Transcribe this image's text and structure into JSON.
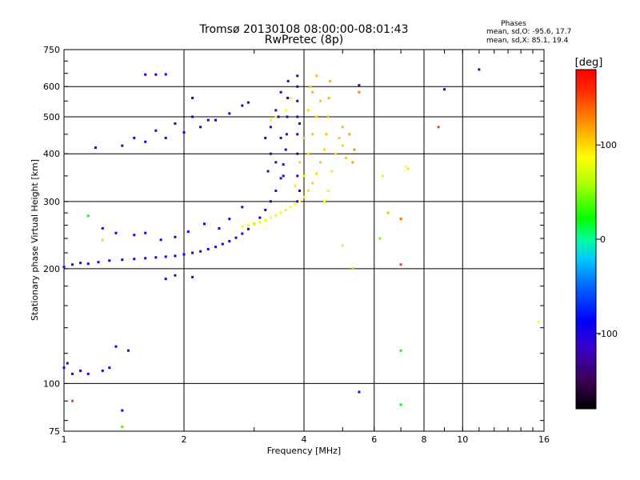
{
  "chart_data": {
    "type": "scatter",
    "title": "Tromsø 20130108 08:00:00-08:01:43",
    "subtitle": "RwPretec (8p)",
    "xlabel": "Frequency [MHz]",
    "ylabel": "Stationary phase Virtual Height [km]",
    "x_scale": "log",
    "y_scale": "log",
    "xlim": [
      1,
      16
    ],
    "ylim": [
      75,
      750
    ],
    "grid": true,
    "x_ticks": [
      1,
      2,
      4,
      6,
      8,
      10,
      16
    ],
    "y_ticks": [
      75,
      100,
      200,
      300,
      400,
      500,
      600,
      750
    ],
    "x_tick_labels": [
      "1",
      "2",
      "4",
      "6",
      "8",
      "10",
      "16"
    ],
    "y_tick_labels": [
      "75",
      "100",
      "200",
      "300",
      "400",
      "500",
      "600",
      "750"
    ],
    "stats": {
      "heading": "Phases",
      "line_o": "mean, sd,O: -95.6, 17.7",
      "line_x": "mean, sd,X:  85.1, 19.4"
    },
    "colorbar": {
      "label": "[deg]",
      "min": -180,
      "max": 180,
      "ticks": [
        100,
        0,
        -100
      ],
      "tick_labels": [
        "100",
        "0",
        "-100"
      ]
    },
    "series": [
      {
        "mode": "O",
        "phase_mean": -95.6,
        "points": [
          [
            1.0,
            202,
            -110
          ],
          [
            1.05,
            205,
            -105
          ],
          [
            1.1,
            207,
            -100
          ],
          [
            1.15,
            206,
            -95
          ],
          [
            1.22,
            208,
            -100
          ],
          [
            1.3,
            210,
            -95
          ],
          [
            1.4,
            211,
            -100
          ],
          [
            1.5,
            212,
            -95
          ],
          [
            1.6,
            213,
            -100
          ],
          [
            1.7,
            214,
            -95
          ],
          [
            1.8,
            215,
            -100
          ],
          [
            1.9,
            216,
            -95
          ],
          [
            2.0,
            218,
            -100
          ],
          [
            2.1,
            220,
            -95
          ],
          [
            2.2,
            222,
            -100
          ],
          [
            2.3,
            225,
            -95
          ],
          [
            2.4,
            228,
            -100
          ],
          [
            2.5,
            232,
            -95
          ],
          [
            2.6,
            236,
            -100
          ],
          [
            2.7,
            241,
            -95
          ],
          [
            2.8,
            247,
            -100
          ],
          [
            2.9,
            254,
            -95
          ],
          [
            3.0,
            262,
            -100
          ],
          [
            3.1,
            272,
            -95
          ],
          [
            3.2,
            285,
            -100
          ],
          [
            3.3,
            300,
            -105
          ],
          [
            3.4,
            320,
            -110
          ],
          [
            3.5,
            345,
            -115
          ],
          [
            3.55,
            375,
            -115
          ],
          [
            3.6,
            410,
            -120
          ],
          [
            3.62,
            450,
            -120
          ],
          [
            3.63,
            500,
            -125
          ],
          [
            3.64,
            560,
            -130
          ],
          [
            3.65,
            620,
            -130
          ],
          [
            1.25,
            255,
            -100
          ],
          [
            1.35,
            248,
            -95
          ],
          [
            1.5,
            245,
            -100
          ],
          [
            1.6,
            248,
            -95
          ],
          [
            1.75,
            238,
            -100
          ],
          [
            1.9,
            242,
            -95
          ],
          [
            2.05,
            250,
            -100
          ],
          [
            2.25,
            262,
            -95
          ],
          [
            2.45,
            255,
            -100
          ],
          [
            2.6,
            270,
            -95
          ],
          [
            2.8,
            290,
            -105
          ],
          [
            1.1,
            108,
            -100
          ],
          [
            1.15,
            106,
            -95
          ],
          [
            1.25,
            108,
            -100
          ],
          [
            1.3,
            110,
            -95
          ],
          [
            1.0,
            110,
            -110
          ],
          [
            1.02,
            113,
            -105
          ],
          [
            1.05,
            106,
            -100
          ],
          [
            1.35,
            125,
            -105
          ],
          [
            1.6,
            645,
            -100
          ],
          [
            1.7,
            645,
            -95
          ],
          [
            1.8,
            646,
            -100
          ],
          [
            1.2,
            415,
            -100
          ],
          [
            1.4,
            420,
            -100
          ],
          [
            1.6,
            430,
            -95
          ],
          [
            1.8,
            440,
            -100
          ],
          [
            2.0,
            455,
            -95
          ],
          [
            2.2,
            470,
            -100
          ],
          [
            2.4,
            490,
            -95
          ],
          [
            2.6,
            510,
            -100
          ],
          [
            2.8,
            535,
            -95
          ],
          [
            2.9,
            545,
            -100
          ],
          [
            1.5,
            440,
            -95
          ],
          [
            1.7,
            460,
            -100
          ],
          [
            1.9,
            480,
            -95
          ],
          [
            2.1,
            500,
            -100
          ],
          [
            2.3,
            490,
            -95
          ],
          [
            3.2,
            440,
            -120
          ],
          [
            3.3,
            470,
            -125
          ],
          [
            3.4,
            520,
            -130
          ],
          [
            3.5,
            580,
            -130
          ],
          [
            3.3,
            400,
            -120
          ],
          [
            3.25,
            360,
            -115
          ],
          [
            3.4,
            380,
            -120
          ],
          [
            3.5,
            440,
            -125
          ],
          [
            3.45,
            500,
            -130
          ],
          [
            3.55,
            350,
            -120
          ],
          [
            3.85,
            300,
            -120
          ],
          [
            3.85,
            350,
            -125
          ],
          [
            3.85,
            400,
            -120
          ],
          [
            3.85,
            450,
            -125
          ],
          [
            3.85,
            500,
            -120
          ],
          [
            3.85,
            550,
            -125
          ],
          [
            3.85,
            600,
            -130
          ],
          [
            3.85,
            640,
            -130
          ],
          [
            3.9,
            320,
            -120
          ],
          [
            3.9,
            480,
            -125
          ],
          [
            2.1,
            190,
            -110
          ],
          [
            1.8,
            188,
            -100
          ],
          [
            1.9,
            192,
            -105
          ],
          [
            5.5,
            95,
            -110
          ],
          [
            5.5,
            605,
            -115
          ],
          [
            9.0,
            590,
            -140
          ],
          [
            11.0,
            665,
            -105
          ],
          [
            1.4,
            85,
            -100
          ],
          [
            1.45,
            122,
            -110
          ],
          [
            2.1,
            560,
            -110
          ]
        ]
      },
      {
        "mode": "X",
        "phase_mean": 85.1,
        "points": [
          [
            2.8,
            258,
            80
          ],
          [
            2.9,
            260,
            85
          ],
          [
            3.0,
            262,
            80
          ],
          [
            3.1,
            265,
            85
          ],
          [
            3.2,
            268,
            80
          ],
          [
            3.3,
            272,
            85
          ],
          [
            3.4,
            276,
            80
          ],
          [
            3.5,
            280,
            85
          ],
          [
            3.6,
            285,
            80
          ],
          [
            3.7,
            290,
            85
          ],
          [
            3.8,
            295,
            80
          ],
          [
            3.9,
            300,
            85
          ],
          [
            4.0,
            308,
            90
          ],
          [
            4.1,
            320,
            95
          ],
          [
            4.2,
            335,
            100
          ],
          [
            4.3,
            355,
            100
          ],
          [
            4.4,
            380,
            105
          ],
          [
            4.5,
            410,
            100
          ],
          [
            4.55,
            450,
            105
          ],
          [
            4.6,
            500,
            110
          ],
          [
            4.62,
            560,
            110
          ],
          [
            4.65,
            620,
            115
          ],
          [
            4.0,
            350,
            95
          ],
          [
            4.1,
            400,
            100
          ],
          [
            4.2,
            450,
            105
          ],
          [
            4.3,
            500,
            100
          ],
          [
            4.4,
            550,
            105
          ],
          [
            4.15,
            600,
            100
          ],
          [
            4.3,
            640,
            110
          ],
          [
            4.5,
            300,
            85
          ],
          [
            4.6,
            320,
            90
          ],
          [
            4.7,
            360,
            95
          ],
          [
            4.8,
            400,
            100
          ],
          [
            4.9,
            440,
            105
          ],
          [
            5.0,
            470,
            110
          ],
          [
            5.0,
            420,
            100
          ],
          [
            5.1,
            390,
            105
          ],
          [
            5.3,
            380,
            120
          ],
          [
            5.35,
            410,
            125
          ],
          [
            5.2,
            450,
            115
          ],
          [
            3.7,
            560,
            90
          ],
          [
            3.6,
            520,
            85
          ],
          [
            3.4,
            500,
            80
          ],
          [
            3.3,
            490,
            85
          ],
          [
            3.8,
            330,
            95
          ],
          [
            3.9,
            380,
            100
          ],
          [
            4.0,
            440,
            105
          ],
          [
            4.1,
            520,
            100
          ],
          [
            4.2,
            580,
            110
          ],
          [
            6.3,
            350,
            80
          ],
          [
            6.5,
            280,
            110
          ],
          [
            7.0,
            270,
            140
          ],
          [
            7.0,
            205,
            150
          ],
          [
            7.2,
            370,
            85
          ],
          [
            7.3,
            365,
            95
          ],
          [
            8.7,
            470,
            150
          ],
          [
            15.5,
            145,
            85
          ],
          [
            5.3,
            200,
            110
          ],
          [
            5.5,
            580,
            130
          ],
          [
            6.2,
            240,
            45
          ],
          [
            5.0,
            230,
            70
          ],
          [
            7.0,
            122,
            25
          ],
          [
            7.0,
            88,
            20
          ],
          [
            1.4,
            77,
            35
          ],
          [
            1.05,
            90,
            150
          ],
          [
            1.25,
            238,
            60
          ],
          [
            1.15,
            275,
            20
          ]
        ]
      }
    ]
  }
}
